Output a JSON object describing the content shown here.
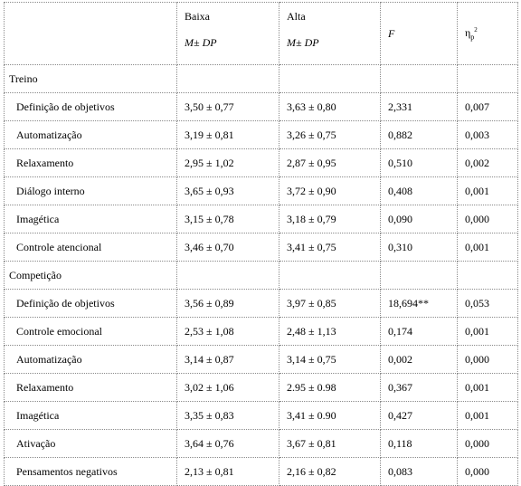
{
  "table": {
    "header": [
      {
        "top": "Baixa",
        "bottom": "M± DP"
      },
      {
        "top": "Alta",
        "bottom": "M± DP"
      },
      {
        "symbol": "F"
      },
      {
        "symbol": "η",
        "sub": "p",
        "sup": "2"
      }
    ],
    "sections": [
      {
        "title": "Treino",
        "rows": [
          [
            "Definição de objetivos",
            "3,50 ± 0,77",
            "3,63 ± 0,80",
            "2,331",
            "0,007"
          ],
          [
            "Automatização",
            "3,19 ± 0,81",
            "3,26 ± 0,75",
            "0,882",
            "0,003"
          ],
          [
            "Relaxamento",
            "2,95 ± 1,02",
            "2,87 ± 0,95",
            "0,510",
            "0,002"
          ],
          [
            "Diálogo interno",
            "3,65 ± 0,93",
            "3,72 ± 0,90",
            "0,408",
            "0,001"
          ],
          [
            "Imagética",
            "3,15 ± 0,78",
            "3,18 ± 0,79",
            "0,090",
            "0,000"
          ],
          [
            "Controle atencional",
            "3,46 ± 0,70",
            "3,41 ± 0,75",
            "0,310",
            "0,001"
          ]
        ]
      },
      {
        "title": "Competição",
        "rows": [
          [
            "Definição de objetivos",
            "3,56 ± 0,89",
            "3,97 ± 0,85",
            "18,694**",
            "0,053"
          ],
          [
            "Controle emocional",
            "2,53 ± 1,08",
            "2,48 ± 1,13",
            "0,174",
            "0,001"
          ],
          [
            "Automatização",
            "3,14 ± 0,87",
            "3,14 ± 0,75",
            "0,002",
            "0,000"
          ],
          [
            "Relaxamento",
            "3,02 ± 1,06",
            "2.95 ± 0.98",
            "0,367",
            "0,001"
          ],
          [
            "Imagética",
            "3,35 ± 0,83",
            "3,41 ± 0.90",
            "0,427",
            "0,001"
          ],
          [
            "Ativação",
            "3,64 ± 0,76",
            "3,67 ± 0,81",
            "0,118",
            "0,000"
          ],
          [
            "Pensamentos negativos",
            "2,13 ± 0,81",
            "2,16 ± 0,82",
            "0,083",
            "0,000"
          ]
        ]
      }
    ]
  }
}
